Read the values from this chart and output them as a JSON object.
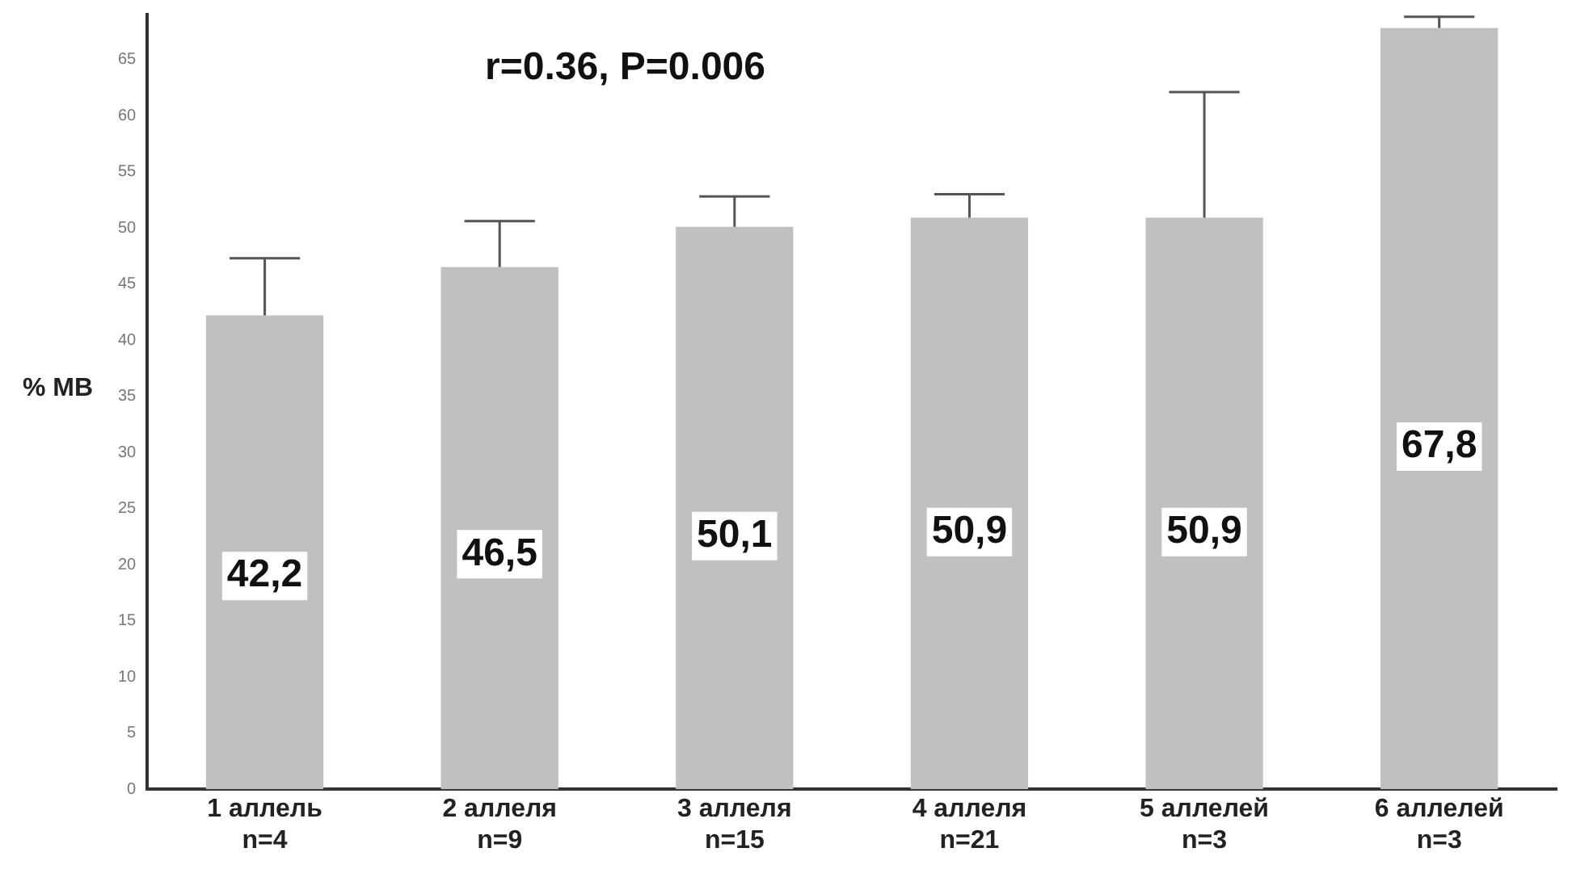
{
  "chart_data": {
    "type": "bar",
    "ylabel": "% МВ",
    "categories": [
      "1 аллель\nn=4",
      "2 аллеля\nn=9",
      "3 аллеля\nn=15",
      "4 аллеля\nn=21",
      "5 аллелей\nn=3",
      "6 аллелей\nn=3"
    ],
    "values": [
      42.2,
      46.5,
      50.1,
      50.9,
      50.9,
      67.8
    ],
    "value_labels": [
      "42,2",
      "46,5",
      "50,1",
      "50,9",
      "50,9",
      "67,8"
    ],
    "errors": [
      [
        42.2,
        47.3
      ],
      [
        46.5,
        50.6
      ],
      [
        50.1,
        52.8
      ],
      [
        50.9,
        53.0
      ],
      [
        50.9,
        62.1
      ],
      [
        67.8,
        68.8
      ]
    ],
    "color": "#c0c0c0",
    "ylim": [
      0,
      69
    ],
    "yticks": [
      0,
      5,
      10,
      15,
      20,
      25,
      30,
      35,
      40,
      45,
      50,
      55,
      60,
      65
    ],
    "grid": false,
    "legend": false,
    "annotations": [
      "r=0.36, P=0.006"
    ]
  }
}
